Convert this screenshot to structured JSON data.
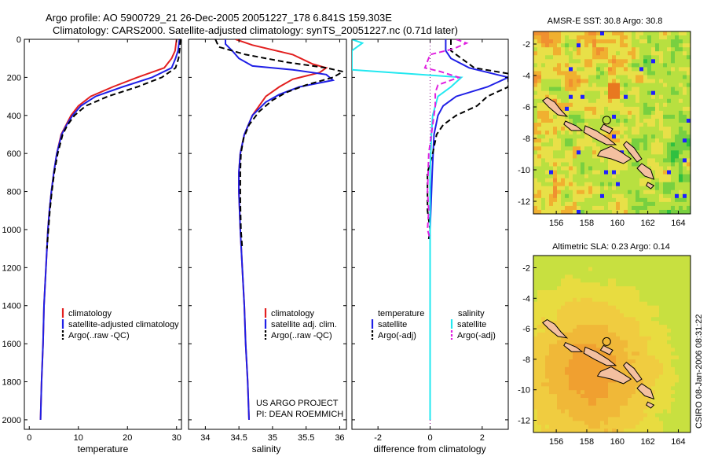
{
  "header": {
    "line1": "Argo profile: AO 5900729_21 26-Dec-2005 20051227_178 6.841S 159.303E",
    "line2": "Climatology: CARS2000. Satellite-adjusted climatology: synTS_20051227.nc (0.71d later)"
  },
  "colors": {
    "climatology": "#e21f1f",
    "satellite": "#1f1fe6",
    "argo": "#000000",
    "satellite_salinity": "#22e8f0",
    "argo_salinity": "#e020e0",
    "land": "#f4c0a0",
    "float_marker": "#000000"
  },
  "chart_data": [
    {
      "type": "line",
      "panel": "temperature",
      "xlabel": "temperature",
      "xlim": [
        -1,
        31
      ],
      "xticks": [
        0,
        10,
        20,
        30
      ],
      "ylim": [
        2050,
        0
      ],
      "yticks": [
        0,
        200,
        400,
        600,
        800,
        1000,
        1200,
        1400,
        1600,
        1800,
        2000
      ],
      "series": [
        {
          "name": "climatology",
          "color": "#e21f1f",
          "dash": "",
          "points": [
            [
              30,
              0
            ],
            [
              29.7,
              60
            ],
            [
              29,
              100
            ],
            [
              27.5,
              150
            ],
            [
              22,
              200
            ],
            [
              17,
              250
            ],
            [
              12.5,
              300
            ],
            [
              10,
              350
            ],
            [
              8.5,
              400
            ],
            [
              7.5,
              450
            ],
            [
              6.5,
              500
            ],
            [
              5.6,
              600
            ],
            [
              5,
              700
            ],
            [
              4.5,
              800
            ],
            [
              4.1,
              900
            ],
            [
              3.8,
              1000
            ],
            [
              3.4,
              1200
            ],
            [
              3,
              1400
            ],
            [
              2.8,
              1600
            ],
            [
              2.5,
              1800
            ],
            [
              2.3,
              2000
            ]
          ]
        },
        {
          "name": "satellite-adjusted climatology",
          "color": "#1f1fe6",
          "dash": "",
          "points": [
            [
              30.6,
              0
            ],
            [
              30.3,
              60
            ],
            [
              29.8,
              100
            ],
            [
              29,
              150
            ],
            [
              25,
              200
            ],
            [
              19,
              250
            ],
            [
              13.5,
              300
            ],
            [
              10.5,
              350
            ],
            [
              8.8,
              400
            ],
            [
              7.6,
              450
            ],
            [
              6.6,
              500
            ],
            [
              5.6,
              600
            ],
            [
              5,
              700
            ],
            [
              4.5,
              800
            ],
            [
              4.1,
              900
            ],
            [
              3.8,
              1000
            ],
            [
              3.4,
              1200
            ],
            [
              3,
              1400
            ],
            [
              2.8,
              1600
            ],
            [
              2.5,
              1800
            ],
            [
              2.3,
              2000
            ]
          ]
        },
        {
          "name": "Argo(..raw -QC)",
          "color": "#000000",
          "dash": "7,4",
          "points": [
            [
              30.8,
              0
            ],
            [
              30.6,
              60
            ],
            [
              30.4,
              100
            ],
            [
              29.8,
              150
            ],
            [
              27,
              200
            ],
            [
              22,
              250
            ],
            [
              16,
              300
            ],
            [
              11.5,
              350
            ],
            [
              9.2,
              400
            ],
            [
              7.8,
              450
            ],
            [
              6.8,
              500
            ],
            [
              5.8,
              600
            ],
            [
              5.1,
              700
            ],
            [
              4.6,
              800
            ],
            [
              4.2,
              900
            ],
            [
              3.9,
              1000
            ],
            [
              3.6,
              1100
            ]
          ]
        }
      ],
      "legend": {
        "placement": "lower-left",
        "items": [
          "climatology",
          "satellite-adjusted climatology",
          "Argo(..raw -QC)"
        ]
      }
    },
    {
      "type": "line",
      "panel": "salinity",
      "xlabel": "salinity",
      "xlim": [
        33.75,
        36.1
      ],
      "xticks": [
        34,
        34.5,
        35,
        35.5,
        36
      ],
      "ylim": [
        2050,
        0
      ],
      "series": [
        {
          "name": "climatology",
          "color": "#e21f1f",
          "dash": "",
          "points": [
            [
              34.45,
              0
            ],
            [
              34.7,
              30
            ],
            [
              35.3,
              80
            ],
            [
              35.6,
              130
            ],
            [
              35.8,
              150
            ],
            [
              35.7,
              175
            ],
            [
              35.3,
              210
            ],
            [
              35.1,
              250
            ],
            [
              34.9,
              300
            ],
            [
              34.7,
              400
            ],
            [
              34.58,
              500
            ],
            [
              34.52,
              600
            ],
            [
              34.5,
              700
            ],
            [
              34.5,
              800
            ],
            [
              34.52,
              1000
            ],
            [
              34.55,
              1200
            ],
            [
              34.58,
              1400
            ],
            [
              34.6,
              1600
            ],
            [
              34.63,
              1800
            ],
            [
              34.65,
              2000
            ]
          ]
        },
        {
          "name": "satellite adj. clim.",
          "color": "#1f1fe6",
          "dash": "",
          "points": [
            [
              34.3,
              0
            ],
            [
              34.3,
              25
            ],
            [
              34.4,
              60
            ],
            [
              34.5,
              100
            ],
            [
              34.7,
              140
            ],
            [
              35.3,
              160
            ],
            [
              35.8,
              185
            ],
            [
              35.9,
              215
            ],
            [
              35.4,
              250
            ],
            [
              35.1,
              290
            ],
            [
              34.9,
              330
            ],
            [
              34.7,
              400
            ],
            [
              34.58,
              500
            ],
            [
              34.52,
              600
            ],
            [
              34.5,
              700
            ],
            [
              34.5,
              800
            ],
            [
              34.52,
              1000
            ],
            [
              34.55,
              1200
            ],
            [
              34.58,
              1400
            ],
            [
              34.6,
              1600
            ],
            [
              34.63,
              1800
            ],
            [
              34.65,
              2000
            ]
          ]
        },
        {
          "name": "Argo(..raw -QC)",
          "color": "#000000",
          "dash": "7,4",
          "points": [
            [
              34.15,
              0
            ],
            [
              34.2,
              40
            ],
            [
              34.6,
              80
            ],
            [
              35.2,
              120
            ],
            [
              35.8,
              150
            ],
            [
              36.05,
              170
            ],
            [
              35.9,
              200
            ],
            [
              35.5,
              240
            ],
            [
              35.2,
              280
            ],
            [
              35,
              320
            ],
            [
              34.8,
              380
            ],
            [
              34.65,
              450
            ],
            [
              34.57,
              520
            ],
            [
              34.53,
              600
            ],
            [
              34.52,
              700
            ],
            [
              34.52,
              850
            ],
            [
              34.53,
              1000
            ],
            [
              34.55,
              1100
            ]
          ]
        }
      ],
      "legend": {
        "placement": "lower-left",
        "items": [
          "climatology",
          "satellite adj. clim.",
          "Argo(..raw -QC)"
        ]
      },
      "annotation": [
        "US ARGO PROJECT",
        "PI: DEAN ROEMMICH"
      ]
    },
    {
      "type": "line",
      "panel": "difference",
      "xlabel": "difference from climatology",
      "xlim": [
        -3,
        3
      ],
      "xticks": [
        -2,
        0,
        2
      ],
      "ylim": [
        2050,
        0
      ],
      "reference_line_x": 0,
      "series": [
        {
          "name": "temperature satellite",
          "color": "#1f1fe6",
          "dash": "",
          "points": [
            [
              0.6,
              0
            ],
            [
              0.6,
              60
            ],
            [
              0.8,
              100
            ],
            [
              1.5,
              150
            ],
            [
              3,
              200
            ],
            [
              2.2,
              250
            ],
            [
              1,
              300
            ],
            [
              0.5,
              350
            ],
            [
              0.3,
              400
            ],
            [
              0.15,
              500
            ],
            [
              0.08,
              700
            ],
            [
              0,
              1000
            ],
            [
              0,
              1500
            ],
            [
              0,
              2000
            ]
          ]
        },
        {
          "name": "temperature Argo(-adj)",
          "color": "#000000",
          "dash": "7,4",
          "points": [
            [
              0.8,
              0
            ],
            [
              0.8,
              60
            ],
            [
              1.2,
              100
            ],
            [
              1.7,
              150
            ],
            [
              3,
              180
            ],
            [
              3,
              200
            ],
            [
              3,
              250
            ],
            [
              2.2,
              300
            ],
            [
              1.8,
              350
            ],
            [
              1,
              400
            ],
            [
              0.5,
              450
            ],
            [
              0.25,
              500
            ],
            [
              0.1,
              600
            ],
            [
              -0.1,
              700
            ],
            [
              -0.1,
              900
            ],
            [
              0,
              1000
            ],
            [
              -0.05,
              1050
            ]
          ]
        },
        {
          "name": "salinity satellite",
          "color": "#22e8f0",
          "dash": "",
          "points": [
            [
              -3,
              0
            ],
            [
              -2.6,
              20
            ],
            [
              -3,
              60
            ],
            [
              -3,
              160
            ],
            [
              1.2,
              200
            ],
            [
              0.8,
              250
            ],
            [
              0.3,
              300
            ],
            [
              0.1,
              400
            ],
            [
              0.05,
              500
            ],
            [
              0,
              700
            ],
            [
              0,
              1000
            ],
            [
              0,
              1500
            ],
            [
              0,
              2000
            ]
          ]
        },
        {
          "name": "salinity Argo(-adj)",
          "color": "#e020e0",
          "dash": "7,4",
          "points": [
            [
              1,
              0
            ],
            [
              1.4,
              20
            ],
            [
              0.9,
              50
            ],
            [
              0,
              80
            ],
            [
              -0.2,
              150
            ],
            [
              0.4,
              170
            ],
            [
              1.1,
              200
            ],
            [
              0.3,
              240
            ],
            [
              0.2,
              280
            ],
            [
              0.2,
              350
            ],
            [
              0.1,
              450
            ],
            [
              -0.05,
              600
            ],
            [
              -0.1,
              800
            ],
            [
              -0.05,
              900
            ],
            [
              -0.1,
              1000
            ],
            [
              0,
              1050
            ]
          ]
        }
      ],
      "legend": {
        "placement": "lower-left",
        "temperature_header": "temperature",
        "salinity_header": "salinity",
        "items": [
          "satellite",
          "Argo(-adj)"
        ]
      }
    },
    {
      "type": "heatmap",
      "panel": "sst_map",
      "title": "AMSR-E SST: 30.8 Argo: 30.8",
      "xlim": [
        154.5,
        164.8
      ],
      "ylim": [
        -12.8,
        -1.2
      ],
      "xticks": [
        156,
        158,
        160,
        162,
        164
      ],
      "yticks": [
        -2,
        -4,
        -6,
        -8,
        -10,
        -12
      ],
      "float_position": [
        159.303,
        -6.841
      ]
    },
    {
      "type": "heatmap",
      "panel": "sla_map",
      "title": "Altimetric SLA: 0.23 Argo: 0.14",
      "xlim": [
        154.5,
        164.8
      ],
      "ylim": [
        -12.8,
        -1.2
      ],
      "xticks": [
        156,
        158,
        160,
        162,
        164
      ],
      "yticks": [
        -2,
        -4,
        -6,
        -8,
        -10,
        -12
      ],
      "float_position": [
        159.303,
        -6.841
      ]
    }
  ],
  "footer": {
    "stamp": "CSIRO 08-Jan-2006 08:31:22"
  }
}
